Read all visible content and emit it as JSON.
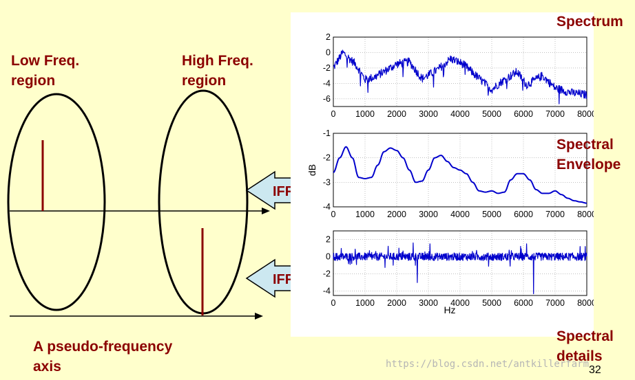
{
  "labels": {
    "low_freq": [
      "Low Freq.",
      "region"
    ],
    "high_freq": [
      "High Freq.",
      "region"
    ],
    "pseudo_axis": [
      "A pseudo-frequency",
      "axis"
    ],
    "spectrum": "Spectrum",
    "spectral_envelope": [
      "Spectral",
      "Envelope"
    ],
    "spectral_details": [
      "Spectral",
      "details"
    ]
  },
  "arrows": {
    "upper_label": "IFFT",
    "lower_label": "IFFT",
    "fill_color": "#cce8f0"
  },
  "colors": {
    "label_red": "#8b0000",
    "plot_blue": "#0000cc",
    "background": "#ffffcc"
  },
  "watermark": "https://blog.csdn.net/antkillerfarm",
  "page_number": "32",
  "chart_data": [
    {
      "type": "line",
      "title": "Spectrum",
      "xlim": [
        0,
        8000
      ],
      "ylim": [
        -7,
        2
      ],
      "xticks": [
        0,
        1000,
        2000,
        3000,
        4000,
        5000,
        6000,
        7000,
        8000
      ],
      "yticks": [
        2,
        0,
        -2,
        -4,
        -6
      ],
      "xlabel": "",
      "ylabel": "",
      "trend_x": [
        0,
        300,
        700,
        1000,
        1300,
        2000,
        2400,
        2800,
        3300,
        3700,
        4100,
        4500,
        5000,
        5300,
        5800,
        6100,
        6600,
        7000,
        7500,
        8000
      ],
      "trend_y": [
        -2,
        0,
        -1.5,
        -3.5,
        -3.2,
        -1.5,
        -1.2,
        -3.4,
        -2.2,
        -0.8,
        -1.5,
        -3.0,
        -4.8,
        -3.8,
        -2.5,
        -4.2,
        -3.0,
        -4.6,
        -5.2,
        -5.5
      ],
      "noise_amplitude": 0.55
    },
    {
      "type": "line",
      "title": "Spectral Envelope",
      "xlim": [
        0,
        8000
      ],
      "ylim": [
        -4,
        -1
      ],
      "xticks": [
        0,
        1000,
        2000,
        3000,
        4000,
        5000,
        6000,
        7000,
        8000
      ],
      "yticks": [
        -1,
        -2,
        -3,
        -4
      ],
      "xlabel": "",
      "ylabel": "dB",
      "x": [
        0,
        200,
        400,
        600,
        800,
        1000,
        1200,
        1400,
        1600,
        1800,
        2000,
        2200,
        2400,
        2600,
        2800,
        3000,
        3200,
        3400,
        3600,
        3800,
        4000,
        4200,
        4400,
        4600,
        4800,
        5000,
        5200,
        5400,
        5600,
        5800,
        6000,
        6200,
        6400,
        6600,
        6800,
        7000,
        7200,
        7400,
        7600,
        7800,
        8000
      ],
      "y": [
        -2.6,
        -2.0,
        -1.55,
        -2.0,
        -2.8,
        -2.85,
        -2.8,
        -2.3,
        -1.75,
        -1.6,
        -1.7,
        -2.0,
        -2.5,
        -3.0,
        -2.95,
        -2.5,
        -2.0,
        -1.9,
        -2.15,
        -2.4,
        -2.5,
        -2.65,
        -3.0,
        -3.35,
        -3.4,
        -3.35,
        -3.45,
        -3.4,
        -2.9,
        -2.65,
        -2.65,
        -2.9,
        -3.3,
        -3.45,
        -3.45,
        -3.35,
        -3.5,
        -3.65,
        -3.75,
        -3.8,
        -3.85
      ]
    },
    {
      "type": "line",
      "title": "Spectral details",
      "xlim": [
        0,
        8000
      ],
      "ylim": [
        -4.5,
        3
      ],
      "xticks": [
        0,
        1000,
        2000,
        3000,
        4000,
        5000,
        6000,
        7000,
        8000
      ],
      "yticks": [
        2,
        0,
        -2,
        -4
      ],
      "xlabel": "Hz",
      "ylabel": "",
      "noise_amplitude": 0.45,
      "spikes": [
        {
          "x": 2650,
          "y": -3.0
        },
        {
          "x": 2520,
          "y": 1.6
        },
        {
          "x": 3050,
          "y": 1.5
        },
        {
          "x": 6100,
          "y": 1.5
        },
        {
          "x": 6320,
          "y": -4.3
        }
      ]
    }
  ]
}
